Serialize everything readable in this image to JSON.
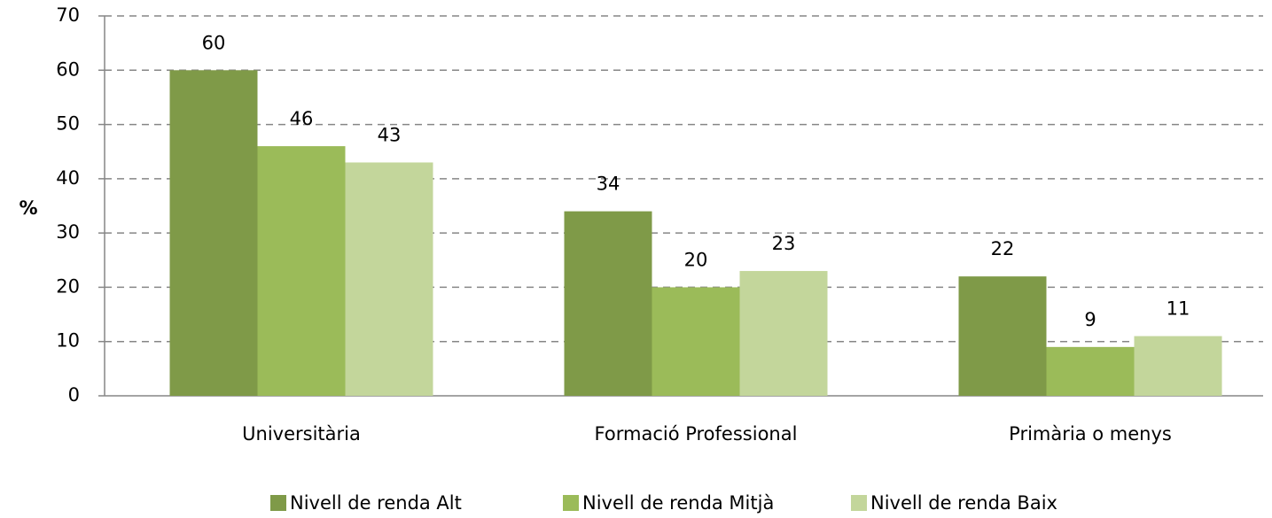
{
  "chart_data": {
    "type": "bar",
    "ylabel": "%",
    "categories": [
      "Universitària",
      "Formació Professional",
      "Primària o menys"
    ],
    "series": [
      {
        "name": "Nivell de renda Alt",
        "color": "#7f9a48",
        "values": [
          60,
          34,
          22
        ]
      },
      {
        "name": "Nivell de renda Mitjà",
        "color": "#9bbb59",
        "values": [
          46,
          20,
          9
        ]
      },
      {
        "name": "Nivell de renda Baix",
        "color": "#c3d69b",
        "values": [
          43,
          23,
          11
        ]
      }
    ],
    "ylim": [
      0,
      70
    ],
    "yticks": [
      0,
      10,
      20,
      30,
      40,
      50,
      60,
      70
    ],
    "grid": true,
    "legend": "bottom"
  }
}
